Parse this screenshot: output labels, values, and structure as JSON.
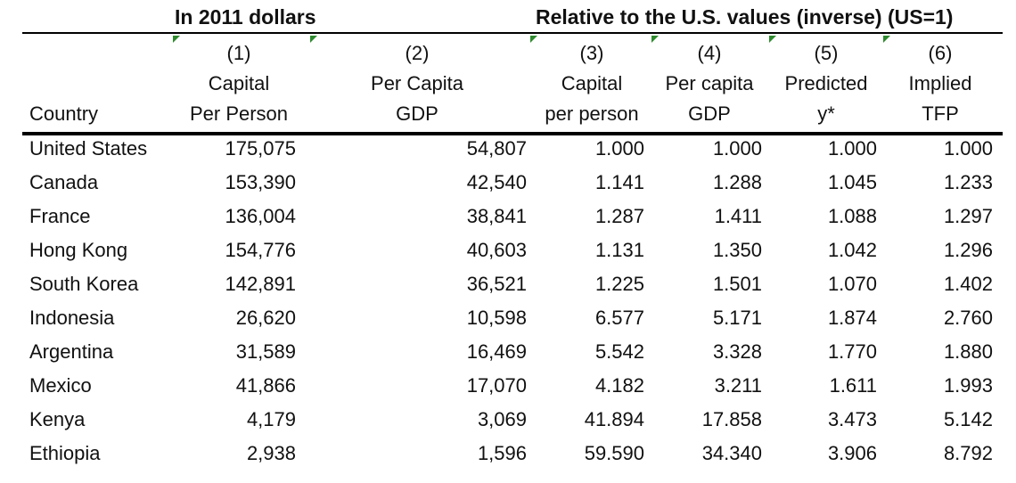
{
  "group_headers": {
    "left": "In 2011 dollars",
    "right": "Relative to the U.S. values (inverse) (US=1)"
  },
  "columns": {
    "country": "Country",
    "c1": [
      "(1)",
      "Capital",
      "Per Person"
    ],
    "c2": [
      "(2)",
      "Per Capita",
      "GDP"
    ],
    "c3": [
      "(3)",
      "Capital",
      "per person"
    ],
    "c4": [
      "(4)",
      "Per capita",
      "GDP"
    ],
    "c5": [
      "(5)",
      "Predicted",
      "y*"
    ],
    "c6": [
      "(6)",
      "Implied",
      "TFP"
    ]
  },
  "rows": [
    [
      "United States",
      "175,075",
      "54,807",
      "1.000",
      "1.000",
      "1.000",
      "1.000"
    ],
    [
      "Canada",
      "153,390",
      "42,540",
      "1.141",
      "1.288",
      "1.045",
      "1.233"
    ],
    [
      "France",
      "136,004",
      "38,841",
      "1.287",
      "1.411",
      "1.088",
      "1.297"
    ],
    [
      "Hong Kong",
      "154,776",
      "40,603",
      "1.131",
      "1.350",
      "1.042",
      "1.296"
    ],
    [
      "South Korea",
      "142,891",
      "36,521",
      "1.225",
      "1.501",
      "1.070",
      "1.402"
    ],
    [
      "Indonesia",
      "26,620",
      "10,598",
      "6.577",
      "5.171",
      "1.874",
      "2.760"
    ],
    [
      "Argentina",
      "31,589",
      "16,469",
      "5.542",
      "3.328",
      "1.770",
      "1.880"
    ],
    [
      "Mexico",
      "41,866",
      "17,070",
      "4.182",
      "3.211",
      "1.611",
      "1.993"
    ],
    [
      "Kenya",
      "4,179",
      "3,069",
      "41.894",
      "17.858",
      "3.473",
      "5.142"
    ],
    [
      "Ethiopia",
      "2,938",
      "1,596",
      "59.590",
      "34.340",
      "3.906",
      "8.792"
    ]
  ],
  "colors": {
    "marker": "#2e8b2e",
    "rule": "#000000"
  }
}
